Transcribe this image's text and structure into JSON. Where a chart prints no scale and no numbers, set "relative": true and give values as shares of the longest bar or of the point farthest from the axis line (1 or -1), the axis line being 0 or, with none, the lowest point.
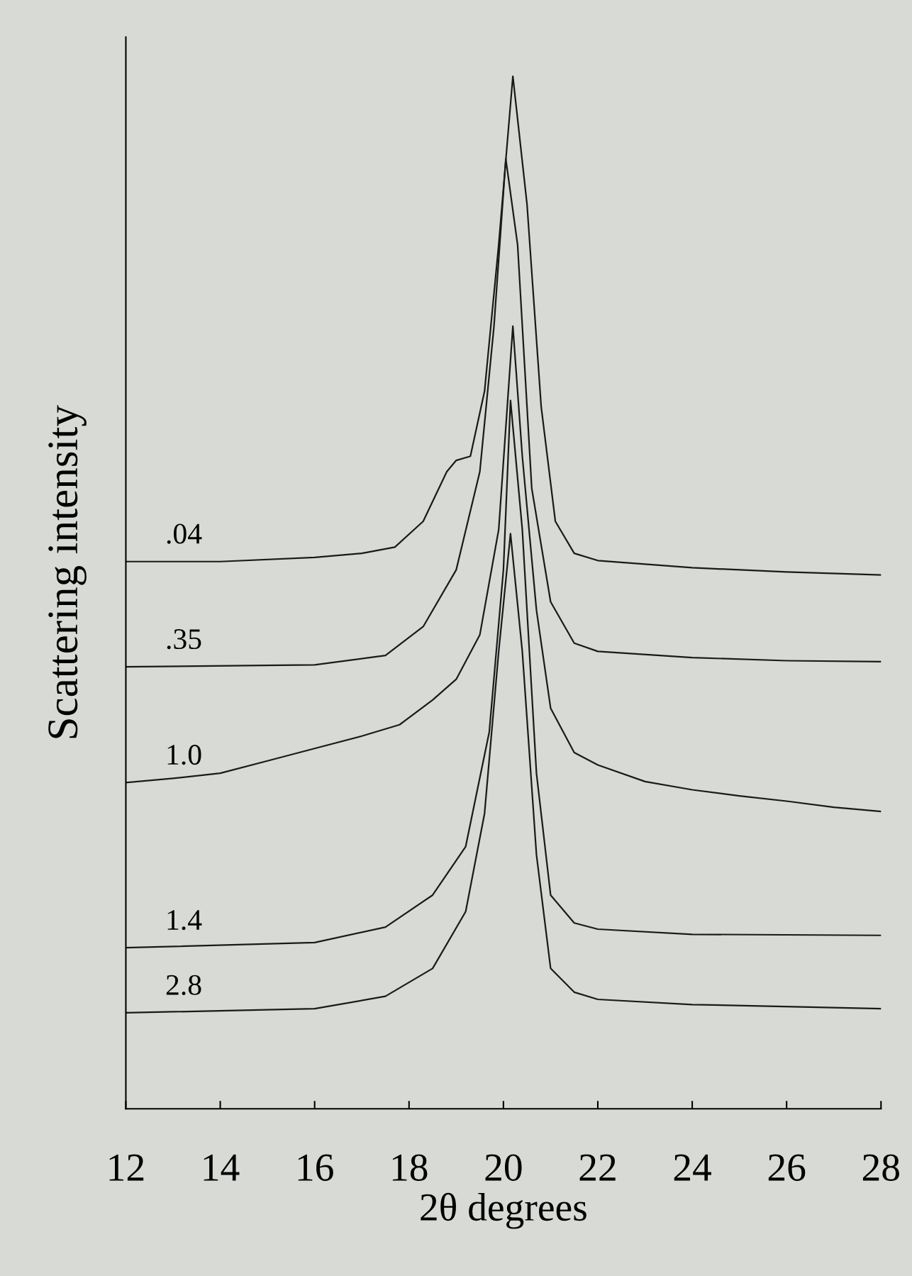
{
  "chart_data": {
    "type": "line",
    "relative": true,
    "xlabel": "2θ degrees",
    "ylabel": "Scattering intensity",
    "xlim": [
      12,
      28
    ],
    "xticks": [
      12,
      14,
      16,
      18,
      20,
      22,
      24,
      26,
      28
    ],
    "grid": false,
    "legend": false,
    "marker": "none",
    "line_style": "solid",
    "tick_labels": "x",
    "series": [
      {
        "name": ".04",
        "color": "#1a1a1a",
        "x": [
          12,
          14,
          16,
          17,
          17.7,
          18.3,
          18.8,
          19.0,
          19.3,
          19.6,
          19.9,
          20.2,
          20.5,
          20.8,
          21.1,
          21.5,
          22,
          24,
          26,
          28
        ],
        "values": [
          0.53,
          0.53,
          0.534,
          0.538,
          0.544,
          0.569,
          0.617,
          0.628,
          0.632,
          0.695,
          0.837,
          1.0,
          0.876,
          0.68,
          0.569,
          0.538,
          0.531,
          0.524,
          0.52,
          0.517
        ]
      },
      {
        "name": ".35",
        "color": "#1a1a1a",
        "x": [
          12,
          16,
          17.5,
          18.3,
          19,
          19.5,
          19.8,
          20.05,
          20.3,
          20.6,
          21,
          21.5,
          22,
          24,
          26,
          28
        ],
        "values": [
          0.428,
          0.43,
          0.439,
          0.467,
          0.522,
          0.617,
          0.758,
          0.92,
          0.837,
          0.601,
          0.491,
          0.451,
          0.443,
          0.437,
          0.434,
          0.433
        ]
      },
      {
        "name": "1.0",
        "color": "#1a1a1a",
        "x": [
          12,
          13,
          14,
          15,
          16,
          17,
          17.8,
          18.5,
          19,
          19.5,
          19.9,
          20.2,
          20.4,
          20.7,
          21,
          21.5,
          22,
          23,
          24,
          25,
          26,
          27,
          28
        ],
        "values": [
          0.316,
          0.32,
          0.325,
          0.337,
          0.349,
          0.361,
          0.372,
          0.396,
          0.416,
          0.459,
          0.561,
          0.758,
          0.632,
          0.483,
          0.388,
          0.345,
          0.333,
          0.317,
          0.309,
          0.303,
          0.298,
          0.292,
          0.288
        ]
      },
      {
        "name": "1.4",
        "color": "#1a1a1a",
        "x": [
          12,
          16,
          17.5,
          18.5,
          19.2,
          19.7,
          20.0,
          20.15,
          20.4,
          20.7,
          21,
          21.5,
          22,
          24,
          28
        ],
        "values": [
          0.156,
          0.161,
          0.176,
          0.207,
          0.254,
          0.365,
          0.522,
          0.686,
          0.561,
          0.325,
          0.207,
          0.18,
          0.174,
          0.169,
          0.168
        ]
      },
      {
        "name": "2.8",
        "color": "#1a1a1a",
        "x": [
          12,
          16,
          17.5,
          18.5,
          19.2,
          19.6,
          19.9,
          20.15,
          20.4,
          20.7,
          21,
          21.5,
          22,
          24,
          28
        ],
        "values": [
          0.093,
          0.097,
          0.109,
          0.136,
          0.191,
          0.286,
          0.443,
          0.557,
          0.443,
          0.246,
          0.136,
          0.113,
          0.106,
          0.101,
          0.097
        ]
      }
    ]
  }
}
